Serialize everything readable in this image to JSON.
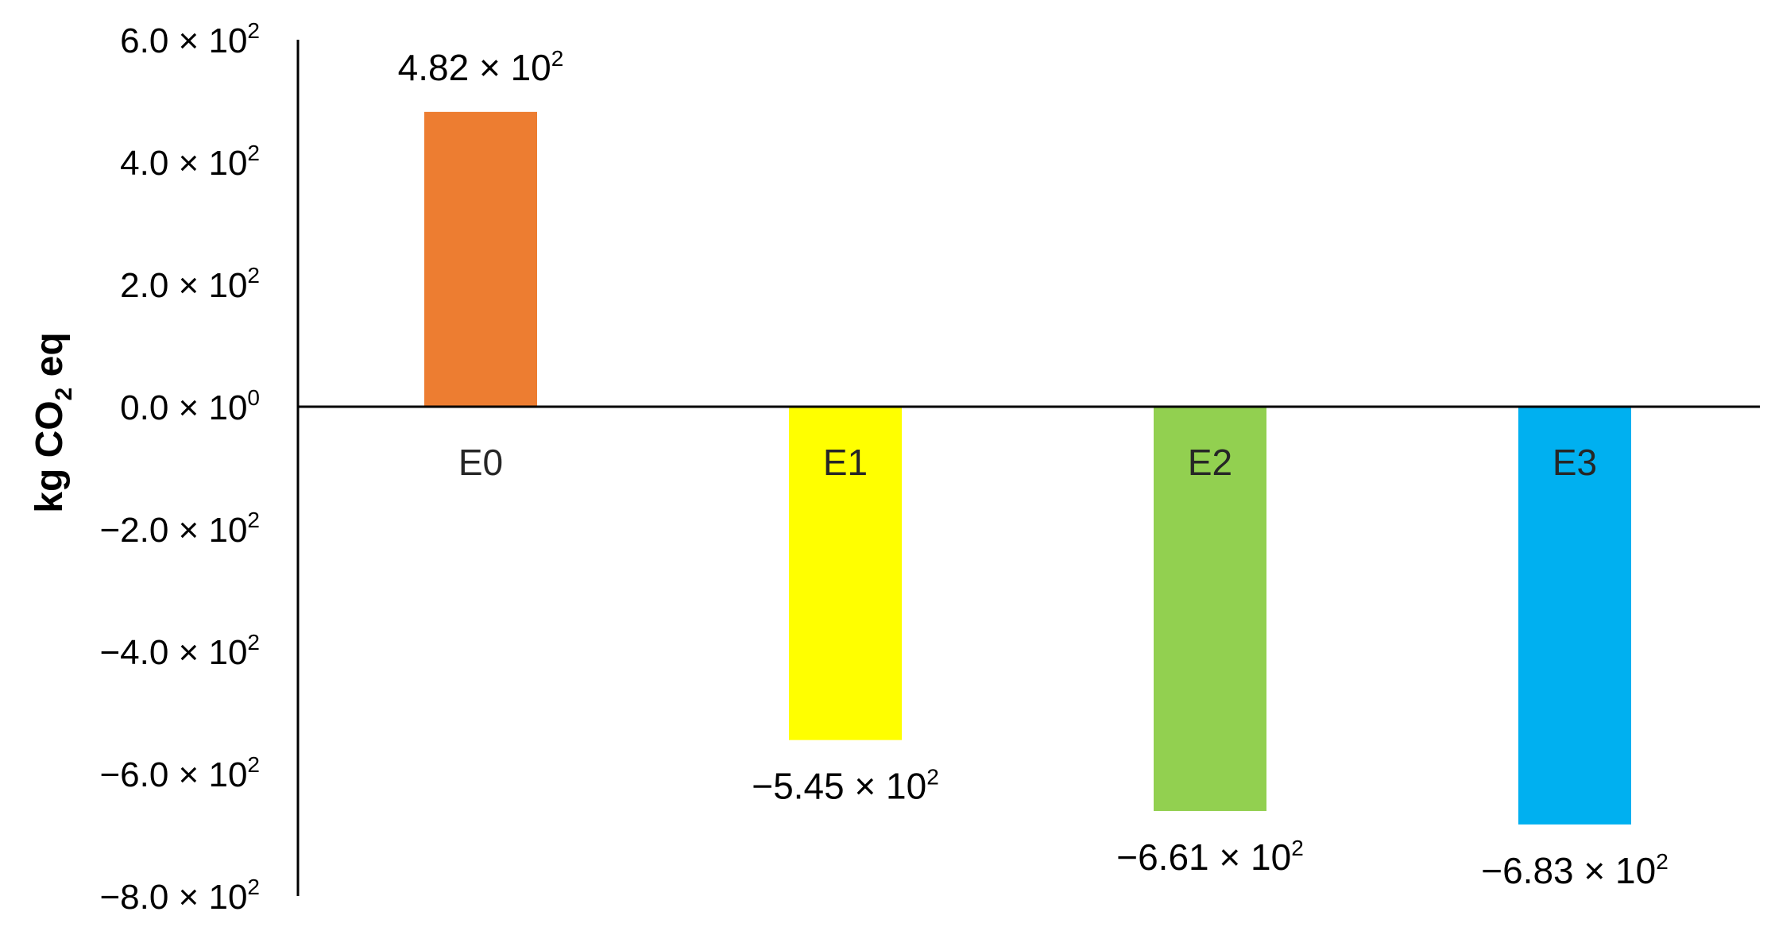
{
  "chart_data": {
    "type": "bar",
    "title": "",
    "xlabel": "",
    "ylabel": "kg CO₂ eq",
    "ylabel_parts": {
      "pre": "kg CO",
      "sub": "2",
      "post": " eq"
    },
    "ylim": [
      -800,
      600
    ],
    "grid": false,
    "legend": "none",
    "categories": [
      "E0",
      "E1",
      "E2",
      "E3"
    ],
    "values": [
      482,
      -545,
      -661,
      -683
    ],
    "colors": [
      "#ED7D31",
      "#FFFF00",
      "#92D050",
      "#00B0F0"
    ],
    "data_labels": [
      {
        "mantissa": "4.82 × 10",
        "exp": "2"
      },
      {
        "mantissa": "−5.45 × 10",
        "exp": "2"
      },
      {
        "mantissa": "−6.61 × 10",
        "exp": "2"
      },
      {
        "mantissa": "−6.83 × 10",
        "exp": "2"
      }
    ],
    "y_ticks": [
      {
        "value": 600,
        "mantissa": "6.0 × 10",
        "exp": "2"
      },
      {
        "value": 400,
        "mantissa": "4.0 × 10",
        "exp": "2"
      },
      {
        "value": 200,
        "mantissa": "2.0 × 10",
        "exp": "2"
      },
      {
        "value": 0,
        "mantissa": "0.0 × 10",
        "exp": "0"
      },
      {
        "value": -200,
        "mantissa": "−2.0 × 10",
        "exp": "2"
      },
      {
        "value": -400,
        "mantissa": "−4.0 × 10",
        "exp": "2"
      },
      {
        "value": -600,
        "mantissa": "−6.0 × 10",
        "exp": "2"
      },
      {
        "value": -800,
        "mantissa": "−8.0 × 10",
        "exp": "2"
      }
    ]
  }
}
